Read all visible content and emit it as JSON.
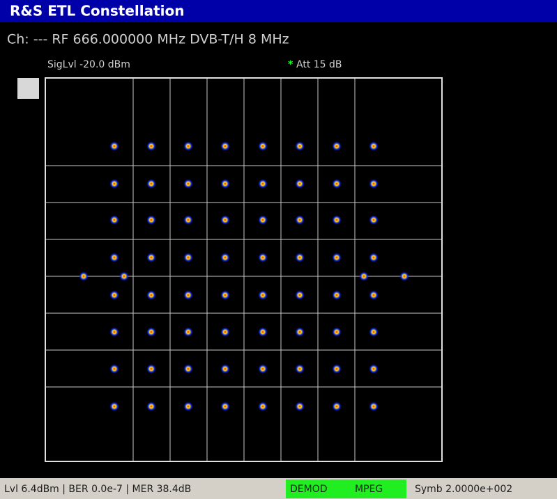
{
  "header": {
    "title": "R&S ETL Constellation"
  },
  "channel": "Ch: --- RF 666.000000 MHz DVB-T/H 8 MHz",
  "signal_level": "SigLvl -20.0 dBm",
  "attenuation": {
    "marker": "*",
    "text": "Att 15 dB"
  },
  "status": {
    "measurements": "Lvl 6.4dBm | BER 0.0e-7 | MER 38.4dB",
    "demod": "DEMOD",
    "mpeg": "MPEG",
    "symbol": "Symb 2.0000e+002"
  }
}
